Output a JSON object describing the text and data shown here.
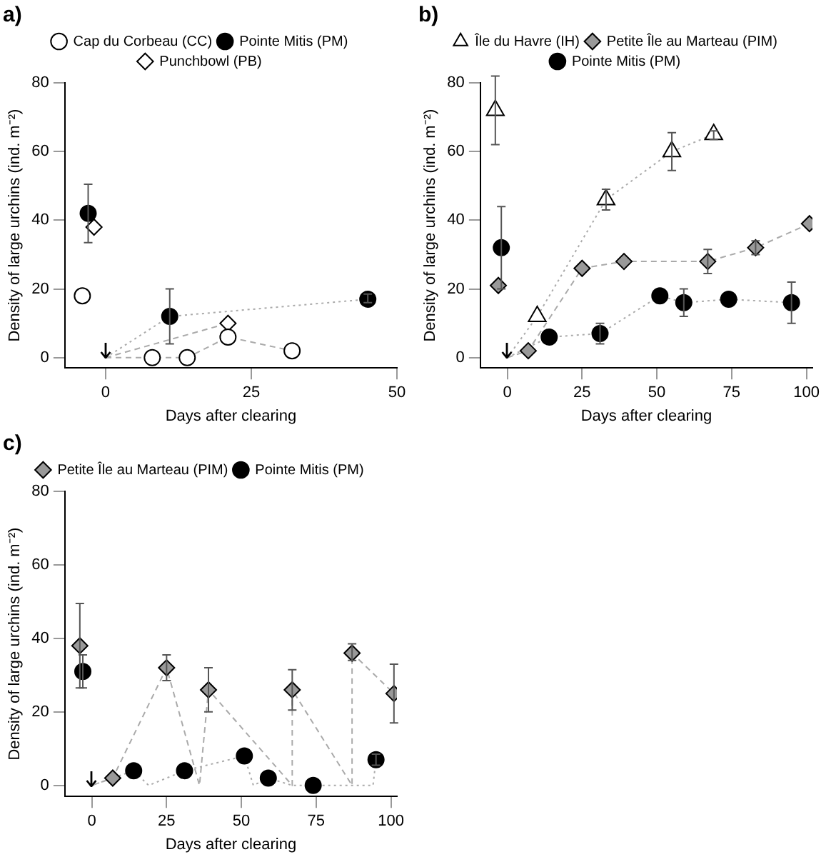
{
  "chart_data": [
    {
      "type": "scatter",
      "title": "a)",
      "xlabel": "Days after clearing",
      "ylabel": "Density of large urchins (ind. m⁻²)",
      "xlim": [
        -7,
        50
      ],
      "xticks": [
        0,
        25,
        50
      ],
      "ylim": [
        -3,
        80
      ],
      "yticks": [
        0,
        20,
        40,
        60,
        80
      ],
      "grid": false,
      "legend": "top",
      "series": [
        {
          "type": "line",
          "color": "#aaaaaa",
          "line_style": "dashed",
          "marker": "none",
          "x": [
            0,
            8,
            14,
            21,
            32
          ],
          "values": [
            0,
            0,
            0,
            6,
            2
          ]
        },
        {
          "type": "line",
          "color": "#aaaaaa",
          "line_style": "dotted",
          "marker": "none",
          "x": [
            0,
            11,
            45
          ],
          "values": [
            0,
            12,
            17
          ]
        },
        {
          "type": "line",
          "color": "#aaaaaa",
          "line_style": "dashed",
          "marker": "none",
          "x": [
            0,
            21
          ],
          "values": [
            0,
            10
          ]
        },
        {
          "name": "Cap du Corbeau (CC)",
          "color": "#ffffff",
          "marker": "circle",
          "x": [
            -4,
            8,
            14,
            21,
            32
          ],
          "values": [
            18,
            0,
            0,
            6,
            2
          ],
          "errors": [
            null,
            null,
            null,
            null,
            null
          ]
        },
        {
          "name": "Pointe Mitis (PM)",
          "color": "#000000",
          "marker": "circle",
          "x": [
            -3,
            11,
            45
          ],
          "values": [
            42,
            12,
            17
          ],
          "errors": [
            [
              33.5,
              50.5
            ],
            [
              4,
              20
            ],
            [
              16,
              18.5
            ]
          ]
        },
        {
          "name": "Punchbowl (PB)",
          "color": "#ffffff",
          "marker": "diamond",
          "x": [
            -2,
            21
          ],
          "values": [
            38,
            10
          ],
          "errors": [
            null,
            null
          ]
        }
      ]
    },
    {
      "type": "scatter",
      "title": "b)",
      "xlabel": "Days after clearing",
      "ylabel": "Density of large urchins (ind. m⁻²)",
      "xlim": [
        -9,
        102
      ],
      "xticks": [
        0,
        25,
        50,
        75,
        100
      ],
      "ylim": [
        -3,
        80
      ],
      "yticks": [
        0,
        20,
        40,
        60,
        80
      ],
      "grid": false,
      "legend": "top",
      "series": [
        {
          "type": "line",
          "color": "#aaaaaa",
          "line_style": "dotted",
          "marker": "none",
          "x": [
            0,
            10,
            33,
            55,
            69
          ],
          "values": [
            0,
            12,
            46,
            60,
            65
          ]
        },
        {
          "type": "line",
          "color": "#aaaaaa",
          "line_style": "dashed",
          "marker": "none",
          "x": [
            0,
            7,
            25,
            39,
            67,
            83,
            101
          ],
          "values": [
            0,
            2,
            26,
            28,
            28,
            32,
            39
          ]
        },
        {
          "type": "line",
          "color": "#aaaaaa",
          "line_style": "dotted",
          "marker": "none",
          "x": [
            0,
            14,
            31,
            51,
            59,
            74,
            95
          ],
          "values": [
            0,
            6,
            7,
            18,
            16,
            17,
            16
          ]
        },
        {
          "name": "Île du Havre (IH)",
          "color": "#ffffff",
          "marker": "triangle",
          "x": [
            -4,
            10,
            33,
            55,
            69
          ],
          "values": [
            72,
            12,
            46,
            60,
            65
          ],
          "errors": [
            [
              62,
              82
            ],
            null,
            [
              43,
              49
            ],
            [
              54.5,
              65.5
            ],
            [
              63.5,
              66
            ]
          ]
        },
        {
          "name": "Petite Île au Marteau (PIM)",
          "color": "#999999",
          "marker": "diamond",
          "x": [
            -3,
            7,
            25,
            39,
            67,
            83,
            101
          ],
          "values": [
            21,
            2,
            26,
            28,
            28,
            32,
            39
          ],
          "errors": [
            null,
            null,
            null,
            null,
            [
              24.5,
              31.5
            ],
            [
              30,
              34
            ],
            null
          ]
        },
        {
          "name": "Pointe Mitis (PM)",
          "color": "#000000",
          "marker": "circle",
          "x": [
            -2,
            14,
            31,
            51,
            59,
            74,
            95
          ],
          "values": [
            32,
            6,
            7,
            18,
            16,
            17,
            16
          ],
          "errors": [
            [
              20,
              44
            ],
            null,
            [
              4,
              10
            ],
            null,
            [
              12,
              20
            ],
            null,
            [
              10,
              22
            ]
          ]
        }
      ]
    },
    {
      "type": "scatter",
      "title": "c)",
      "xlabel": "Days after clearing",
      "ylabel": "Density of large urchins (ind. m⁻²)",
      "xlim": [
        -9,
        102
      ],
      "xticks": [
        0,
        25,
        50,
        75,
        100
      ],
      "ylim": [
        -3,
        80
      ],
      "yticks": [
        0,
        20,
        40,
        60,
        80
      ],
      "grid": false,
      "legend": "top",
      "series": [
        {
          "type": "line",
          "color": "#aaaaaa",
          "line_style": "dashed",
          "marker": "none",
          "x": [
            0,
            7,
            25,
            36,
            39,
            67,
            67,
            87,
            87,
            101
          ],
          "values": [
            0,
            2,
            32,
            0,
            26,
            0,
            26,
            0,
            36,
            25
          ]
        },
        {
          "type": "line",
          "color": "#aaaaaa",
          "line_style": "dotted",
          "marker": "none",
          "x": [
            0,
            14,
            19,
            31,
            51,
            54,
            59,
            67,
            74,
            94,
            95
          ],
          "values": [
            0,
            4,
            0,
            4,
            8,
            0,
            2,
            0,
            0,
            0,
            7
          ]
        },
        {
          "name": "Petite Île au Marteau (PIM)",
          "color": "#999999",
          "marker": "diamond",
          "x": [
            -4,
            7,
            25,
            39,
            67,
            87,
            101
          ],
          "values": [
            38,
            2,
            32,
            26,
            26,
            36,
            25
          ],
          "errors": [
            [
              26.5,
              49.5
            ],
            null,
            [
              28.5,
              35.5
            ],
            [
              20,
              32
            ],
            [
              20.5,
              31.5
            ],
            [
              34,
              38.5
            ],
            [
              17,
              33
            ]
          ]
        },
        {
          "name": "Pointe Mitis (PM)",
          "color": "#000000",
          "marker": "circle",
          "x": [
            -3,
            14,
            31,
            51,
            59,
            74,
            95
          ],
          "values": [
            31,
            4,
            4,
            8,
            2,
            0,
            7
          ],
          "errors": [
            [
              26.5,
              35.5
            ],
            null,
            null,
            null,
            null,
            null,
            [
              5.5,
              8.5
            ]
          ]
        }
      ]
    }
  ]
}
